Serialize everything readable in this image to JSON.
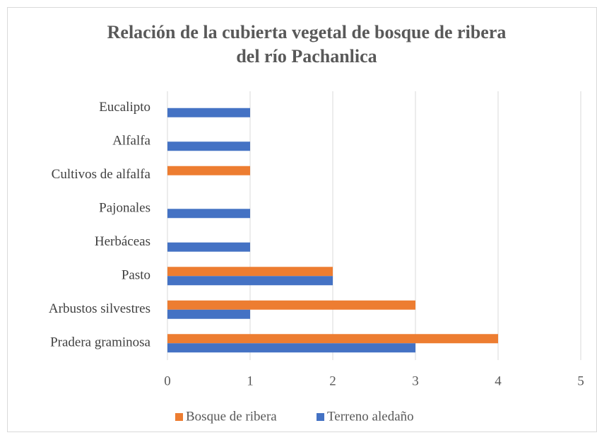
{
  "chart_data": {
    "type": "barh",
    "title": [
      "Relación de la cubierta vegetal de bosque de ribera",
      "del río Pachanlica"
    ],
    "categories": [
      "Eucalipto",
      "Alfalfa",
      "Cultivos de alfalfa",
      "Pajonales",
      "Herbáceas",
      "Pasto",
      "Arbustos silvestres",
      "Pradera graminosa"
    ],
    "series": [
      {
        "name": "Bosque de ribera",
        "color": "#ed7d31",
        "values": [
          0,
          0,
          1,
          0,
          0,
          2,
          3,
          4
        ]
      },
      {
        "name": "Terreno aledaño",
        "color": "#4472c4",
        "values": [
          1,
          1,
          0,
          1,
          1,
          2,
          1,
          3
        ]
      }
    ],
    "xlim": [
      0,
      5
    ],
    "xticks": [
      0,
      1,
      2,
      3,
      4,
      5
    ],
    "grid": true,
    "legend": "bottom"
  }
}
